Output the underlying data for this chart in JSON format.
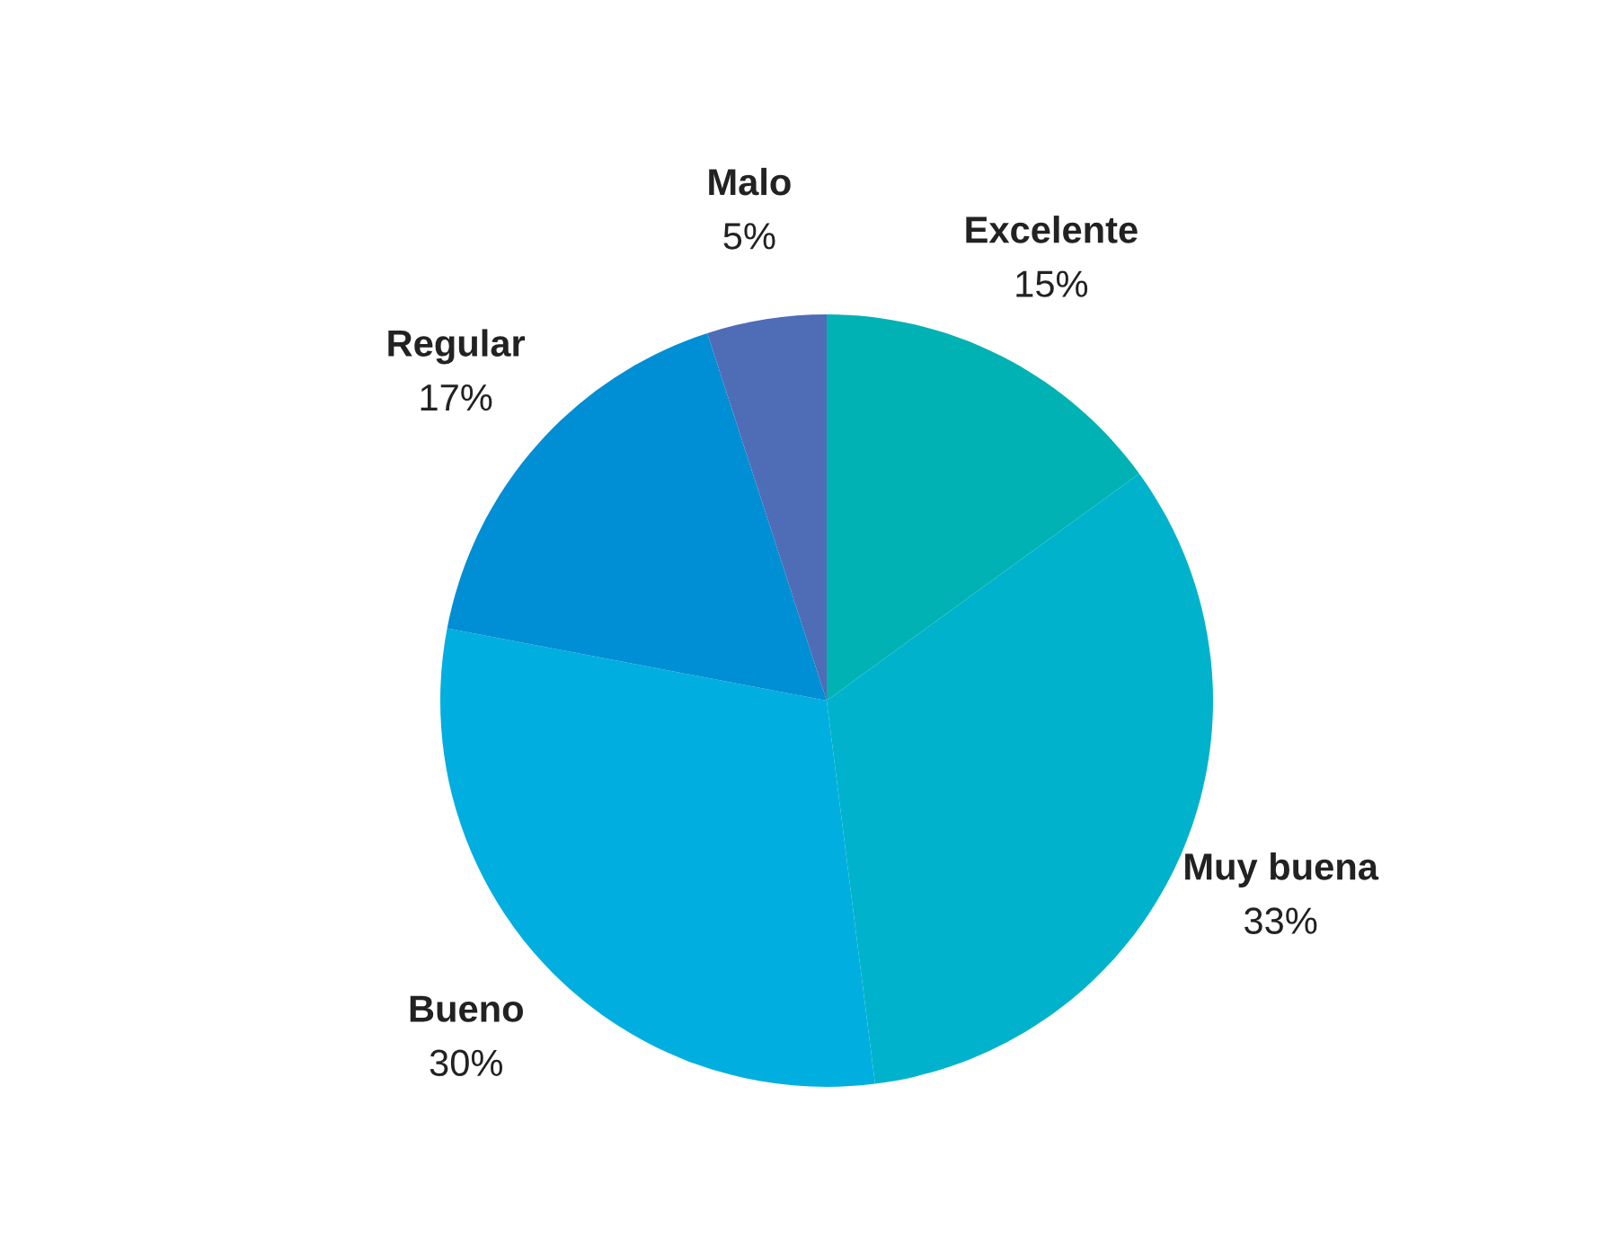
{
  "chart_data": {
    "type": "pie",
    "categories": [
      "Excelente",
      "Muy buena",
      "Bueno",
      "Regular",
      "Malo"
    ],
    "values": [
      15,
      33,
      30,
      17,
      5
    ],
    "value_labels": [
      "15%",
      "33%",
      "30%",
      "17%",
      "5%"
    ],
    "colors": [
      "#00b2b4",
      "#00b2cc",
      "#00aedf",
      "#008ed4",
      "#4f6cb6"
    ],
    "legend": false
  }
}
